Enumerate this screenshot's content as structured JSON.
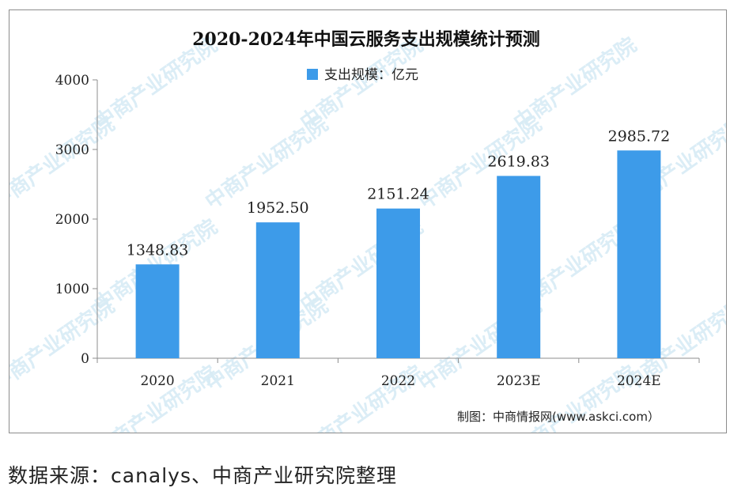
{
  "chart_data": {
    "type": "bar",
    "title": "2020-2024年中国云服务支出规模统计预测",
    "categories": [
      "2020",
      "2021",
      "2022",
      "2023E",
      "2024E"
    ],
    "series": [
      {
        "name": "支出规模：亿元",
        "values": [
          1348.83,
          1952.5,
          2151.24,
          2619.83,
          2985.72
        ],
        "labels": [
          "1348.83",
          "1952.50",
          "2151.24",
          "2619.83",
          "2985.72"
        ]
      }
    ],
    "ylim": [
      0,
      4000
    ],
    "yticks": [
      0,
      1000,
      2000,
      3000,
      4000
    ],
    "xlabel": "",
    "ylabel": "",
    "grid": false,
    "legend": "top-center",
    "bar_color": "#3d9be9",
    "credit": "制图：中商情报网(www.askci.com）"
  },
  "watermark": "中商产业研究院",
  "source_note": "数据来源：canalys、中商产业研究院整理"
}
